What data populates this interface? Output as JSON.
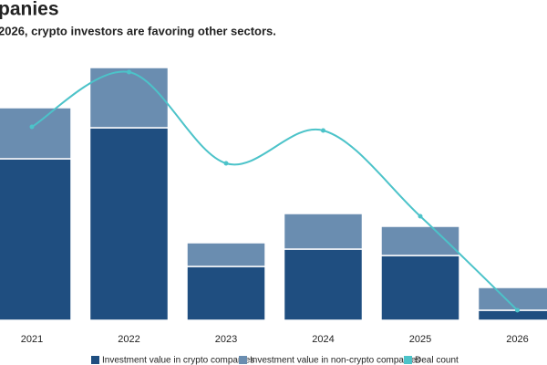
{
  "chart_data": {
    "type": "stacked-bar-line",
    "title": "panies",
    "subtitle": "2026, crypto investors are favoring other sectors.",
    "categories": [
      "2021",
      "2022",
      "2023",
      "2024",
      "2025",
      "2026"
    ],
    "series": [
      {
        "name": "Investment value in crypto companies",
        "color": "#1f4e80",
        "values": [
          177,
          211,
          59,
          78,
          71,
          11
        ]
      },
      {
        "name": "Investment value in non-crypto companies",
        "color": "#6a8db0",
        "values": [
          56,
          66,
          26,
          39,
          32,
          25
        ]
      },
      {
        "name": "Deal count",
        "color": "#4cc3c9",
        "axis": "y2",
        "values": [
          212,
          272,
          172,
          208,
          114,
          11
        ]
      }
    ],
    "ylim": [
      0,
      300
    ],
    "y2lim": [
      0,
      300
    ]
  }
}
